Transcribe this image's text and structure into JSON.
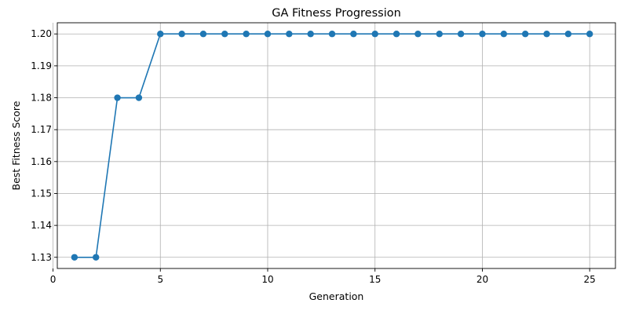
{
  "chart_data": {
    "type": "line",
    "title": "GA Fitness Progression",
    "xlabel": "Generation",
    "ylabel": "Best Fitness Score",
    "xlim": [
      0.2,
      26.2
    ],
    "ylim": [
      1.1265,
      1.2035
    ],
    "xticks": [
      0,
      5,
      10,
      15,
      20,
      25
    ],
    "yticks": [
      1.13,
      1.14,
      1.15,
      1.16,
      1.17,
      1.18,
      1.19,
      1.2
    ],
    "grid": true,
    "marker": "circle",
    "color": "#1f77b4",
    "series": [
      {
        "x": [
          1,
          2,
          3,
          4,
          5,
          6,
          7,
          8,
          9,
          10,
          11,
          12,
          13,
          14,
          15,
          16,
          17,
          18,
          19,
          20,
          21,
          22,
          23,
          24,
          25
        ],
        "values": [
          1.13,
          1.13,
          1.18,
          1.18,
          1.2,
          1.2,
          1.2,
          1.2,
          1.2,
          1.2,
          1.2,
          1.2,
          1.2,
          1.2,
          1.2,
          1.2,
          1.2,
          1.2,
          1.2,
          1.2,
          1.2,
          1.2,
          1.2,
          1.2,
          1.2
        ]
      }
    ]
  }
}
